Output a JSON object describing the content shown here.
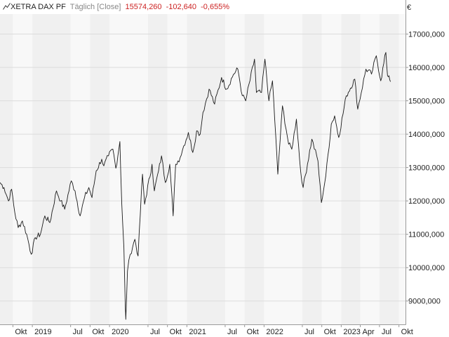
{
  "header": {
    "instrument": "XETRA DAX PF",
    "interval": "Täglich [Close]",
    "last": "15574,260",
    "change": "-102,640",
    "change_pct": "-0,655%"
  },
  "colors": {
    "line": "#1a1a1a",
    "band_dark": "#f0f0f0",
    "band_light": "#f8f8f8",
    "grid": "#dcdcdc",
    "negative": "#cc2222",
    "muted": "#888888",
    "title": "#222222"
  },
  "icons": {
    "chart": "line-chart-icon"
  },
  "chart_data": {
    "type": "line",
    "currency": "€",
    "ylim": [
      8300,
      17600
    ],
    "yticks": [
      9000,
      10000,
      11000,
      12000,
      13000,
      14000,
      15000,
      16000,
      17000
    ],
    "ytick_labels": [
      "9000,000",
      "10000,000",
      "11000,000",
      "12000,000",
      "13000,000",
      "14000,000",
      "15000,000",
      "16000,000",
      "17000,000"
    ],
    "xlim": [
      "2018-08-01",
      "2023-11-01"
    ],
    "x_ticks": [
      {
        "date": "2018-10-01",
        "label": "Okt"
      },
      {
        "date": "2019-01-01",
        "label": "2019"
      },
      {
        "date": "2019-07-01",
        "label": "Jul"
      },
      {
        "date": "2019-10-01",
        "label": "Okt"
      },
      {
        "date": "2020-01-01",
        "label": "2020"
      },
      {
        "date": "2020-07-01",
        "label": "Jul"
      },
      {
        "date": "2020-10-01",
        "label": "Okt"
      },
      {
        "date": "2021-01-01",
        "label": "2021"
      },
      {
        "date": "2021-07-01",
        "label": "Jul"
      },
      {
        "date": "2021-10-01",
        "label": "Okt"
      },
      {
        "date": "2022-01-01",
        "label": "2022"
      },
      {
        "date": "2022-07-01",
        "label": "Jul"
      },
      {
        "date": "2022-10-01",
        "label": "Okt"
      },
      {
        "date": "2023-01-01",
        "label": "2023"
      },
      {
        "date": "2023-04-01",
        "label": "Apr"
      },
      {
        "date": "2023-07-01",
        "label": "Jul"
      },
      {
        "date": "2023-10-01",
        "label": "Okt"
      }
    ],
    "grid": true,
    "series": [
      {
        "values": [
          [
            "2018-08-01",
            12550
          ],
          [
            "2018-08-20",
            12400
          ],
          [
            "2018-09-10",
            12000
          ],
          [
            "2018-09-25",
            12350
          ],
          [
            "2018-10-10",
            11650
          ],
          [
            "2018-10-26",
            11200
          ],
          [
            "2018-11-15",
            11400
          ],
          [
            "2018-12-05",
            11000
          ],
          [
            "2018-12-27",
            10400
          ],
          [
            "2019-01-15",
            10900
          ],
          [
            "2019-02-08",
            11000
          ],
          [
            "2019-03-01",
            11550
          ],
          [
            "2019-03-25",
            11350
          ],
          [
            "2019-04-25",
            12300
          ],
          [
            "2019-05-15",
            12000
          ],
          [
            "2019-06-03",
            11750
          ],
          [
            "2019-07-04",
            12600
          ],
          [
            "2019-07-22",
            12300
          ],
          [
            "2019-08-15",
            11550
          ],
          [
            "2019-09-05",
            12100
          ],
          [
            "2019-09-25",
            12400
          ],
          [
            "2019-10-10",
            12100
          ],
          [
            "2019-10-30",
            12900
          ],
          [
            "2019-11-25",
            13250
          ],
          [
            "2019-12-05",
            13050
          ],
          [
            "2019-12-27",
            13350
          ],
          [
            "2020-01-17",
            13550
          ],
          [
            "2020-01-31",
            12980
          ],
          [
            "2020-02-19",
            13780
          ],
          [
            "2020-02-28",
            11900
          ],
          [
            "2020-03-09",
            10600
          ],
          [
            "2020-03-16",
            8750
          ],
          [
            "2020-03-18",
            8450
          ],
          [
            "2020-03-26",
            9900
          ],
          [
            "2020-04-08",
            10400
          ],
          [
            "2020-04-30",
            10850
          ],
          [
            "2020-05-15",
            10350
          ],
          [
            "2020-06-05",
            12800
          ],
          [
            "2020-06-15",
            11900
          ],
          [
            "2020-07-20",
            13100
          ],
          [
            "2020-07-31",
            12300
          ],
          [
            "2020-08-20",
            12900
          ],
          [
            "2020-09-03",
            13350
          ],
          [
            "2020-09-21",
            12550
          ],
          [
            "2020-10-12",
            13100
          ],
          [
            "2020-10-28",
            11550
          ],
          [
            "2020-11-09",
            13100
          ],
          [
            "2020-11-30",
            13300
          ],
          [
            "2020-12-17",
            13650
          ],
          [
            "2021-01-08",
            14050
          ],
          [
            "2021-01-29",
            13450
          ],
          [
            "2021-02-16",
            14100
          ],
          [
            "2021-03-05",
            14000
          ],
          [
            "2021-03-18",
            14650
          ],
          [
            "2021-04-16",
            15350
          ],
          [
            "2021-05-12",
            14900
          ],
          [
            "2021-06-14",
            15700
          ],
          [
            "2021-07-08",
            15350
          ],
          [
            "2021-08-10",
            15800
          ],
          [
            "2021-08-30",
            15950
          ],
          [
            "2021-09-20",
            15150
          ],
          [
            "2021-10-06",
            15000
          ],
          [
            "2021-11-17",
            16250
          ],
          [
            "2021-11-26",
            15250
          ],
          [
            "2021-12-20",
            15250
          ],
          [
            "2022-01-05",
            16250
          ],
          [
            "2022-01-24",
            15000
          ],
          [
            "2022-02-10",
            15600
          ],
          [
            "2022-03-07",
            12800
          ],
          [
            "2022-03-29",
            14850
          ],
          [
            "2022-04-27",
            13700
          ],
          [
            "2022-05-12",
            13550
          ],
          [
            "2022-06-03",
            14450
          ],
          [
            "2022-06-23",
            12900
          ],
          [
            "2022-07-05",
            12400
          ],
          [
            "2022-08-15",
            13850
          ],
          [
            "2022-09-13",
            13200
          ],
          [
            "2022-09-29",
            11950
          ],
          [
            "2022-10-20",
            12750
          ],
          [
            "2022-11-15",
            14300
          ],
          [
            "2022-12-01",
            14550
          ],
          [
            "2022-12-20",
            13900
          ],
          [
            "2023-01-25",
            15150
          ],
          [
            "2023-03-06",
            15650
          ],
          [
            "2023-03-20",
            14750
          ],
          [
            "2023-04-28",
            15950
          ],
          [
            "2023-05-24",
            15800
          ],
          [
            "2023-06-16",
            16350
          ],
          [
            "2023-07-07",
            15600
          ],
          [
            "2023-07-31",
            16450
          ],
          [
            "2023-08-08",
            15750
          ],
          [
            "2023-08-15",
            15750
          ],
          [
            "2023-08-22",
            15574
          ]
        ]
      }
    ]
  }
}
